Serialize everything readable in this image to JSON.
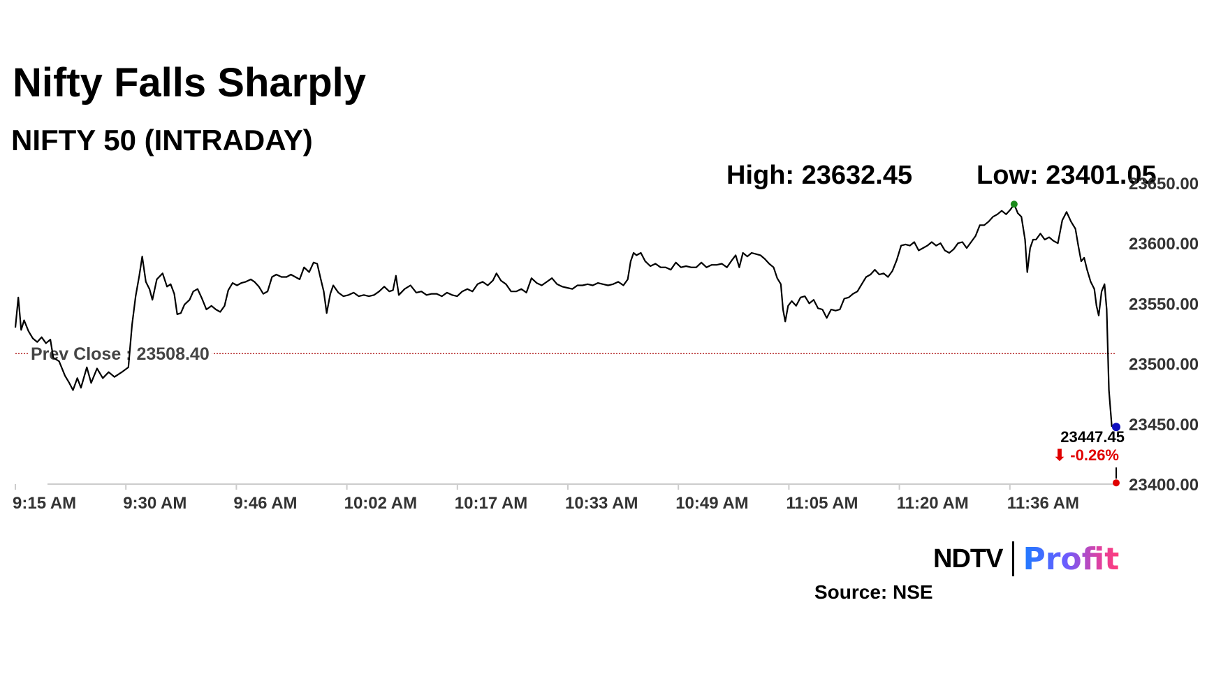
{
  "header": {
    "title": "Nifty Falls Sharply",
    "subtitle": "NIFTY 50 (INTRADAY)",
    "high_text": "High: 23632.45",
    "low_text": "Low: 23401.05"
  },
  "footer": {
    "brand_left": "NDTV",
    "brand_right": "Profit",
    "source": "Source: NSE"
  },
  "chart_data": {
    "type": "line",
    "x_ticks": [
      "9:15 AM",
      "9:30 AM",
      "9:46 AM",
      "10:02 AM",
      "10:17 AM",
      "10:33 AM",
      "10:49 AM",
      "11:05 AM",
      "11:20 AM",
      "11:36 AM"
    ],
    "y_ticks": [
      "23400.00",
      "23450.00",
      "23500.00",
      "23550.00",
      "23600.00",
      "23650.00"
    ],
    "ylim": [
      23400,
      23650
    ],
    "time_range_minutes": [
      0,
      151
    ],
    "prev_close": 23508.4,
    "prev_close_label": "Prev Close : 23508.40",
    "high": 23632.45,
    "low": 23401.05,
    "last_value": 23447.45,
    "last_label": "23447.45",
    "change_label": "⬇ -0.26%",
    "colors": {
      "line": "#000000",
      "prev_close_line": "#b22222",
      "high_marker": "#1a8a1a",
      "low_marker": "#e00000",
      "last_marker": "#1010c0",
      "change_text": "#e00000",
      "axis": "#cccccc",
      "tick_text": "#333333"
    },
    "series": [
      {
        "points": [
          [
            0.0,
            23530
          ],
          [
            0.4,
            23555
          ],
          [
            0.8,
            23528
          ],
          [
            1.2,
            23536
          ],
          [
            1.8,
            23527
          ],
          [
            2.4,
            23521
          ],
          [
            3.0,
            23518
          ],
          [
            3.6,
            23522
          ],
          [
            4.2,
            23517
          ],
          [
            4.8,
            23520
          ],
          [
            5.2,
            23505
          ],
          [
            6.0,
            23502
          ],
          [
            6.8,
            23490
          ],
          [
            7.4,
            23484
          ],
          [
            7.9,
            23478
          ],
          [
            8.5,
            23488
          ],
          [
            9.0,
            23480
          ],
          [
            9.8,
            23497
          ],
          [
            10.4,
            23484
          ],
          [
            11.2,
            23496
          ],
          [
            12.0,
            23488
          ],
          [
            12.8,
            23493
          ],
          [
            13.6,
            23489
          ],
          [
            14.6,
            23493
          ],
          [
            15.5,
            23497
          ],
          [
            16.0,
            23532
          ],
          [
            16.5,
            23556
          ],
          [
            17.0,
            23573
          ],
          [
            17.4,
            23589
          ],
          [
            17.9,
            23568
          ],
          [
            18.4,
            23562
          ],
          [
            18.8,
            23553
          ],
          [
            19.4,
            23570
          ],
          [
            20.2,
            23575
          ],
          [
            20.8,
            23564
          ],
          [
            21.3,
            23566
          ],
          [
            21.8,
            23558
          ],
          [
            22.2,
            23541
          ],
          [
            22.7,
            23542
          ],
          [
            23.2,
            23549
          ],
          [
            23.9,
            23553
          ],
          [
            24.4,
            23560
          ],
          [
            25.0,
            23562
          ],
          [
            25.6,
            23554
          ],
          [
            26.2,
            23545
          ],
          [
            26.9,
            23548
          ],
          [
            27.5,
            23545
          ],
          [
            28.1,
            23543
          ],
          [
            28.7,
            23548
          ],
          [
            29.2,
            23561
          ],
          [
            29.8,
            23567
          ],
          [
            30.4,
            23565
          ],
          [
            31.0,
            23567
          ],
          [
            31.6,
            23568
          ],
          [
            32.3,
            23570
          ],
          [
            32.8,
            23568
          ],
          [
            33.4,
            23564
          ],
          [
            34.0,
            23558
          ],
          [
            34.6,
            23560
          ],
          [
            35.2,
            23572
          ],
          [
            35.8,
            23574
          ],
          [
            36.5,
            23572
          ],
          [
            37.2,
            23572
          ],
          [
            37.8,
            23574
          ],
          [
            38.4,
            23572
          ],
          [
            39.0,
            23570
          ],
          [
            39.6,
            23580
          ],
          [
            40.3,
            23576
          ],
          [
            40.9,
            23584
          ],
          [
            41.4,
            23583
          ],
          [
            41.9,
            23570
          ],
          [
            42.3,
            23560
          ],
          [
            42.7,
            23542
          ],
          [
            43.2,
            23558
          ],
          [
            43.6,
            23565
          ],
          [
            44.3,
            23559
          ],
          [
            45.0,
            23556
          ],
          [
            45.7,
            23557
          ],
          [
            46.4,
            23559
          ],
          [
            47.1,
            23556
          ],
          [
            47.8,
            23557
          ],
          [
            48.5,
            23556
          ],
          [
            49.2,
            23557
          ],
          [
            49.9,
            23560
          ],
          [
            50.6,
            23564
          ],
          [
            51.3,
            23560
          ],
          [
            51.8,
            23561
          ],
          [
            52.2,
            23573
          ],
          [
            52.6,
            23557
          ],
          [
            53.4,
            23562
          ],
          [
            54.2,
            23565
          ],
          [
            55.0,
            23559
          ],
          [
            55.7,
            23560
          ],
          [
            56.4,
            23557
          ],
          [
            57.1,
            23558
          ],
          [
            57.8,
            23558
          ],
          [
            58.5,
            23556
          ],
          [
            59.2,
            23559
          ],
          [
            59.9,
            23557
          ],
          [
            60.6,
            23556
          ],
          [
            61.3,
            23560
          ],
          [
            62.0,
            23562
          ],
          [
            62.7,
            23560
          ],
          [
            63.4,
            23566
          ],
          [
            64.1,
            23568
          ],
          [
            64.8,
            23565
          ],
          [
            65.5,
            23569
          ],
          [
            66.0,
            23575
          ],
          [
            66.6,
            23569
          ],
          [
            67.3,
            23566
          ],
          [
            68.0,
            23560
          ],
          [
            68.7,
            23560
          ],
          [
            69.4,
            23562
          ],
          [
            70.1,
            23559
          ],
          [
            70.8,
            23571
          ],
          [
            71.5,
            23567
          ],
          [
            72.2,
            23565
          ],
          [
            72.9,
            23568
          ],
          [
            73.6,
            23571
          ],
          [
            74.3,
            23566
          ],
          [
            75.0,
            23564
          ],
          [
            75.7,
            23563
          ],
          [
            76.4,
            23562
          ],
          [
            77.1,
            23565
          ],
          [
            77.8,
            23565
          ],
          [
            78.5,
            23566
          ],
          [
            79.2,
            23565
          ],
          [
            79.9,
            23567
          ],
          [
            80.6,
            23566
          ],
          [
            81.3,
            23565
          ],
          [
            82.0,
            23566
          ],
          [
            82.7,
            23568
          ],
          [
            83.4,
            23565
          ],
          [
            84.0,
            23570
          ],
          [
            84.4,
            23585
          ],
          [
            84.8,
            23592
          ],
          [
            85.2,
            23590
          ],
          [
            85.8,
            23592
          ],
          [
            86.4,
            23585
          ],
          [
            87.1,
            23581
          ],
          [
            87.8,
            23583
          ],
          [
            88.5,
            23580
          ],
          [
            89.2,
            23580
          ],
          [
            89.9,
            23578
          ],
          [
            90.6,
            23584
          ],
          [
            91.3,
            23580
          ],
          [
            92.0,
            23581
          ],
          [
            92.7,
            23580
          ],
          [
            93.4,
            23580
          ],
          [
            94.1,
            23584
          ],
          [
            94.8,
            23580
          ],
          [
            95.5,
            23582
          ],
          [
            96.2,
            23582
          ],
          [
            96.9,
            23583
          ],
          [
            97.6,
            23580
          ],
          [
            98.3,
            23586
          ],
          [
            98.8,
            23590
          ],
          [
            99.3,
            23580
          ],
          [
            99.8,
            23592
          ],
          [
            100.4,
            23589
          ],
          [
            101.0,
            23592
          ],
          [
            101.6,
            23591
          ],
          [
            102.2,
            23590
          ],
          [
            102.8,
            23587
          ],
          [
            103.4,
            23583
          ],
          [
            104.0,
            23580
          ],
          [
            104.5,
            23571
          ],
          [
            105.0,
            23566
          ],
          [
            105.3,
            23545
          ],
          [
            105.6,
            23535
          ],
          [
            106.0,
            23548
          ],
          [
            106.5,
            23552
          ],
          [
            107.1,
            23548
          ],
          [
            107.7,
            23555
          ],
          [
            108.3,
            23556
          ],
          [
            108.9,
            23550
          ],
          [
            109.5,
            23553
          ],
          [
            110.1,
            23546
          ],
          [
            110.7,
            23545
          ],
          [
            111.3,
            23538
          ],
          [
            111.9,
            23545
          ],
          [
            112.5,
            23544
          ],
          [
            113.1,
            23545
          ],
          [
            113.7,
            23554
          ],
          [
            114.3,
            23555
          ],
          [
            114.9,
            23558
          ],
          [
            115.5,
            23560
          ],
          [
            116.1,
            23566
          ],
          [
            116.7,
            23572
          ],
          [
            117.3,
            23574
          ],
          [
            117.9,
            23578
          ],
          [
            118.5,
            23574
          ],
          [
            119.1,
            23575
          ],
          [
            119.7,
            23572
          ],
          [
            120.3,
            23577
          ],
          [
            120.9,
            23586
          ],
          [
            121.5,
            23598
          ],
          [
            122.1,
            23599
          ],
          [
            122.7,
            23598
          ],
          [
            123.3,
            23601
          ],
          [
            123.9,
            23594
          ],
          [
            124.5,
            23596
          ],
          [
            125.1,
            23598
          ],
          [
            125.7,
            23601
          ],
          [
            126.3,
            23598
          ],
          [
            126.9,
            23600
          ],
          [
            127.5,
            23594
          ],
          [
            128.1,
            23592
          ],
          [
            128.7,
            23595
          ],
          [
            129.3,
            23600
          ],
          [
            129.9,
            23601
          ],
          [
            130.5,
            23596
          ],
          [
            131.1,
            23601
          ],
          [
            131.7,
            23606
          ],
          [
            132.3,
            23615
          ],
          [
            132.9,
            23615
          ],
          [
            133.5,
            23618
          ],
          [
            134.1,
            23622
          ],
          [
            134.7,
            23624
          ],
          [
            135.3,
            23627
          ],
          [
            135.9,
            23624
          ],
          [
            136.5,
            23628
          ],
          [
            137.0,
            23632.45
          ],
          [
            137.5,
            23625
          ],
          [
            138.0,
            23622
          ],
          [
            138.5,
            23603
          ],
          [
            138.8,
            23576
          ],
          [
            139.2,
            23596
          ],
          [
            139.6,
            23603
          ],
          [
            140.0,
            23603
          ],
          [
            140.6,
            23608
          ],
          [
            141.2,
            23603
          ],
          [
            141.8,
            23605
          ],
          [
            142.4,
            23602
          ],
          [
            143.0,
            23600
          ],
          [
            143.6,
            23619
          ],
          [
            144.2,
            23626
          ],
          [
            144.8,
            23618
          ],
          [
            145.4,
            23612
          ],
          [
            145.8,
            23598
          ],
          [
            146.2,
            23585
          ],
          [
            146.6,
            23588
          ],
          [
            147.0,
            23578
          ],
          [
            147.5,
            23568
          ],
          [
            148.0,
            23562
          ],
          [
            148.3,
            23548
          ],
          [
            148.6,
            23540
          ],
          [
            149.0,
            23560
          ],
          [
            149.4,
            23566
          ],
          [
            149.7,
            23545
          ],
          [
            150.0,
            23478
          ],
          [
            150.4,
            23448
          ],
          [
            151.0,
            23447.45
          ]
        ]
      }
    ]
  }
}
